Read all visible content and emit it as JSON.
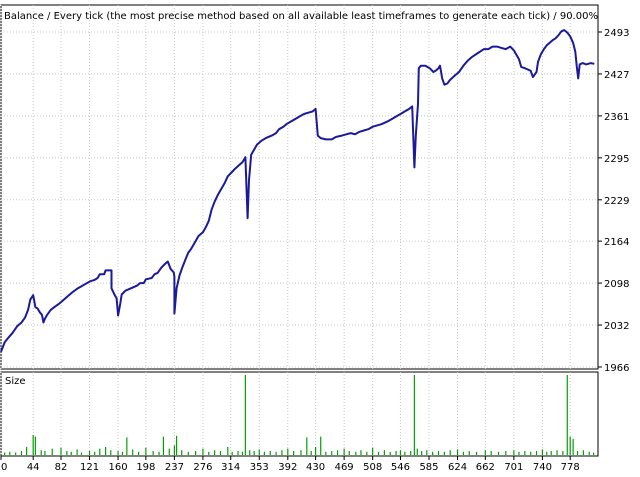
{
  "chart_data": [
    {
      "type": "line",
      "title": "Balance / Every tick (the most precise method based on all available least timeframes to generate each tick) / 90.00%",
      "xlabel": "",
      "ylabel": "",
      "ylim": [
        1966,
        2526
      ],
      "xlim": [
        0,
        816
      ],
      "y_ticks": [
        "2493",
        "2427",
        "2361",
        "2295",
        "2229",
        "2164",
        "2098",
        "2032",
        "1966"
      ],
      "grid": true,
      "line_color": "#1a1a9a",
      "series": [
        {
          "points": [
            [
              0,
              1990
            ],
            [
              5,
              2005
            ],
            [
              10,
              2012
            ],
            [
              16,
              2020
            ],
            [
              22,
              2030
            ],
            [
              28,
              2036
            ],
            [
              33,
              2044
            ],
            [
              37,
              2056
            ],
            [
              40,
              2072
            ],
            [
              44,
              2079
            ],
            [
              47,
              2060
            ],
            [
              50,
              2058
            ],
            [
              53,
              2052
            ],
            [
              56,
              2048
            ],
            [
              58,
              2036
            ],
            [
              60,
              2042
            ],
            [
              63,
              2048
            ],
            [
              68,
              2056
            ],
            [
              74,
              2061
            ],
            [
              80,
              2066
            ],
            [
              86,
              2072
            ],
            [
              92,
              2078
            ],
            [
              98,
              2084
            ],
            [
              104,
              2089
            ],
            [
              110,
              2093
            ],
            [
              116,
              2097
            ],
            [
              122,
              2101
            ],
            [
              128,
              2103
            ],
            [
              132,
              2106
            ],
            [
              135,
              2112
            ],
            [
              141,
              2112
            ],
            [
              143,
              2118
            ],
            [
              151,
              2118
            ],
            [
              151,
              2090
            ],
            [
              155,
              2080
            ],
            [
              158,
              2074
            ],
            [
              160,
              2047
            ],
            [
              163,
              2066
            ],
            [
              165,
              2080
            ],
            [
              170,
              2086
            ],
            [
              178,
              2090
            ],
            [
              186,
              2094
            ],
            [
              190,
              2098
            ],
            [
              195,
              2098
            ],
            [
              198,
              2104
            ],
            [
              206,
              2106
            ],
            [
              210,
              2112
            ],
            [
              214,
              2114
            ],
            [
              219,
              2122
            ],
            [
              224,
              2128
            ],
            [
              228,
              2132
            ],
            [
              232,
              2120
            ],
            [
              236,
              2115
            ],
            [
              237,
              2108
            ],
            [
              237,
              2050
            ],
            [
              240,
              2090
            ],
            [
              244,
              2110
            ],
            [
              248,
              2123
            ],
            [
              252,
              2135
            ],
            [
              256,
              2146
            ],
            [
              260,
              2152
            ],
            [
              264,
              2160
            ],
            [
              270,
              2172
            ],
            [
              276,
              2178
            ],
            [
              280,
              2186
            ],
            [
              284,
              2196
            ],
            [
              288,
              2214
            ],
            [
              292,
              2226
            ],
            [
              296,
              2236
            ],
            [
              300,
              2244
            ],
            [
              306,
              2256
            ],
            [
              310,
              2266
            ],
            [
              315,
              2272
            ],
            [
              320,
              2278
            ],
            [
              326,
              2284
            ],
            [
              330,
              2288
            ],
            [
              334,
              2296
            ],
            [
              337,
              2200
            ],
            [
              339,
              2260
            ],
            [
              342,
              2300
            ],
            [
              346,
              2308
            ],
            [
              350,
              2316
            ],
            [
              356,
              2322
            ],
            [
              362,
              2326
            ],
            [
              370,
              2330
            ],
            [
              376,
              2334
            ],
            [
              380,
              2340
            ],
            [
              386,
              2344
            ],
            [
              390,
              2348
            ],
            [
              396,
              2352
            ],
            [
              402,
              2356
            ],
            [
              408,
              2360
            ],
            [
              414,
              2364
            ],
            [
              420,
              2366
            ],
            [
              426,
              2368
            ],
            [
              430,
              2372
            ],
            [
              433,
              2330
            ],
            [
              437,
              2326
            ],
            [
              444,
              2324
            ],
            [
              452,
              2324
            ],
            [
              458,
              2328
            ],
            [
              466,
              2330
            ],
            [
              472,
              2332
            ],
            [
              478,
              2334
            ],
            [
              484,
              2332
            ],
            [
              490,
              2336
            ],
            [
              496,
              2338
            ],
            [
              502,
              2340
            ],
            [
              508,
              2344
            ],
            [
              514,
              2346
            ],
            [
              520,
              2348
            ],
            [
              528,
              2352
            ],
            [
              534,
              2356
            ],
            [
              540,
              2360
            ],
            [
              546,
              2364
            ],
            [
              552,
              2368
            ],
            [
              558,
              2372
            ],
            [
              562,
              2376
            ],
            [
              565,
              2280
            ],
            [
              567,
              2330
            ],
            [
              570,
              2380
            ],
            [
              571,
              2436
            ],
            [
              574,
              2440
            ],
            [
              580,
              2440
            ],
            [
              586,
              2436
            ],
            [
              591,
              2430
            ],
            [
              594,
              2432
            ],
            [
              598,
              2436
            ],
            [
              600,
              2440
            ],
            [
              603,
              2420
            ],
            [
              606,
              2410
            ],
            [
              610,
              2412
            ],
            [
              614,
              2418
            ],
            [
              620,
              2424
            ],
            [
              626,
              2430
            ],
            [
              632,
              2440
            ],
            [
              638,
              2448
            ],
            [
              644,
              2454
            ],
            [
              652,
              2460
            ],
            [
              660,
              2466
            ],
            [
              666,
              2466
            ],
            [
              672,
              2470
            ],
            [
              678,
              2470
            ],
            [
              684,
              2468
            ],
            [
              690,
              2466
            ],
            [
              696,
              2470
            ],
            [
              701,
              2464
            ],
            [
              704,
              2458
            ],
            [
              708,
              2450
            ],
            [
              711,
              2438
            ],
            [
              716,
              2436
            ],
            [
              720,
              2434
            ],
            [
              724,
              2432
            ],
            [
              727,
              2422
            ],
            [
              732,
              2430
            ],
            [
              734,
              2446
            ],
            [
              738,
              2458
            ],
            [
              742,
              2466
            ],
            [
              746,
              2472
            ],
            [
              750,
              2476
            ],
            [
              754,
              2480
            ],
            [
              758,
              2483
            ],
            [
              762,
              2488
            ],
            [
              766,
              2494
            ],
            [
              770,
              2496
            ],
            [
              774,
              2492
            ],
            [
              778,
              2486
            ],
            [
              782,
              2476
            ],
            [
              785,
              2462
            ],
            [
              787,
              2438
            ],
            [
              789,
              2420
            ],
            [
              791,
              2442
            ],
            [
              795,
              2444
            ],
            [
              800,
              2442
            ],
            [
              806,
              2444
            ],
            [
              811,
              2443
            ]
          ]
        }
      ]
    },
    {
      "type": "bar",
      "title": "Size",
      "x_ticks": [
        "0",
        "44",
        "82",
        "121",
        "160",
        "198",
        "237",
        "276",
        "314",
        "353",
        "392",
        "430",
        "469",
        "508",
        "546",
        "585",
        "624",
        "662",
        "701",
        "740",
        "778"
      ],
      "xlim": [
        0,
        816
      ],
      "ylim": [
        0,
        10
      ],
      "bar_color": "#00a000",
      "bars": [
        [
          5,
          0.3
        ],
        [
          12,
          0.4
        ],
        [
          20,
          0.3
        ],
        [
          28,
          0.5
        ],
        [
          35,
          1.0
        ],
        [
          44,
          2.5
        ],
        [
          47,
          2.3
        ],
        [
          55,
          0.6
        ],
        [
          60,
          0.5
        ],
        [
          70,
          0.8
        ],
        [
          82,
          0.9
        ],
        [
          90,
          0.5
        ],
        [
          96,
          0.4
        ],
        [
          104,
          0.7
        ],
        [
          110,
          0.3
        ],
        [
          121,
          0.5
        ],
        [
          128,
          0.4
        ],
        [
          135,
          0.8
        ],
        [
          143,
          1.0
        ],
        [
          150,
          0.6
        ],
        [
          160,
          0.5
        ],
        [
          166,
          0.4
        ],
        [
          172,
          2.2
        ],
        [
          180,
          0.7
        ],
        [
          188,
          0.4
        ],
        [
          198,
          0.9
        ],
        [
          208,
          0.5
        ],
        [
          216,
          0.4
        ],
        [
          222,
          2.3
        ],
        [
          230,
          0.8
        ],
        [
          237,
          1.2
        ],
        [
          240,
          2.4
        ],
        [
          247,
          0.6
        ],
        [
          256,
          0.4
        ],
        [
          266,
          0.5
        ],
        [
          276,
          0.8
        ],
        [
          284,
          0.4
        ],
        [
          292,
          0.6
        ],
        [
          300,
          0.5
        ],
        [
          310,
          1.0
        ],
        [
          316,
          0.4
        ],
        [
          324,
          0.5
        ],
        [
          330,
          0.4
        ],
        [
          334,
          10.0
        ],
        [
          340,
          0.6
        ],
        [
          346,
          0.5
        ],
        [
          353,
          0.7
        ],
        [
          360,
          0.4
        ],
        [
          368,
          0.5
        ],
        [
          376,
          0.4
        ],
        [
          384,
          0.6
        ],
        [
          392,
          0.8
        ],
        [
          400,
          0.5
        ],
        [
          410,
          0.6
        ],
        [
          418,
          2.2
        ],
        [
          424,
          0.5
        ],
        [
          430,
          1.0
        ],
        [
          437,
          2.3
        ],
        [
          444,
          0.4
        ],
        [
          452,
          0.5
        ],
        [
          460,
          0.6
        ],
        [
          469,
          0.8
        ],
        [
          476,
          0.5
        ],
        [
          485,
          0.4
        ],
        [
          492,
          0.6
        ],
        [
          500,
          0.4
        ],
        [
          508,
          0.9
        ],
        [
          516,
          0.4
        ],
        [
          524,
          0.6
        ],
        [
          532,
          0.4
        ],
        [
          540,
          0.5
        ],
        [
          546,
          0.6
        ],
        [
          552,
          0.4
        ],
        [
          560,
          0.5
        ],
        [
          565,
          10.0
        ],
        [
          569,
          0.8
        ],
        [
          575,
          0.5
        ],
        [
          582,
          0.6
        ],
        [
          590,
          0.4
        ],
        [
          598,
          0.5
        ],
        [
          606,
          0.4
        ],
        [
          614,
          0.6
        ],
        [
          624,
          0.7
        ],
        [
          632,
          0.4
        ],
        [
          640,
          0.5
        ],
        [
          650,
          0.4
        ],
        [
          662,
          0.6
        ],
        [
          670,
          0.5
        ],
        [
          680,
          0.4
        ],
        [
          690,
          0.5
        ],
        [
          701,
          0.6
        ],
        [
          708,
          0.4
        ],
        [
          716,
          0.5
        ],
        [
          724,
          0.4
        ],
        [
          732,
          0.5
        ],
        [
          740,
          0.7
        ],
        [
          746,
          0.4
        ],
        [
          752,
          0.5
        ],
        [
          760,
          0.6
        ],
        [
          768,
          0.5
        ],
        [
          774,
          10.0
        ],
        [
          778,
          2.3
        ],
        [
          782,
          2.0
        ],
        [
          788,
          0.5
        ],
        [
          796,
          0.6
        ],
        [
          804,
          0.4
        ],
        [
          810,
          0.3
        ]
      ]
    }
  ]
}
